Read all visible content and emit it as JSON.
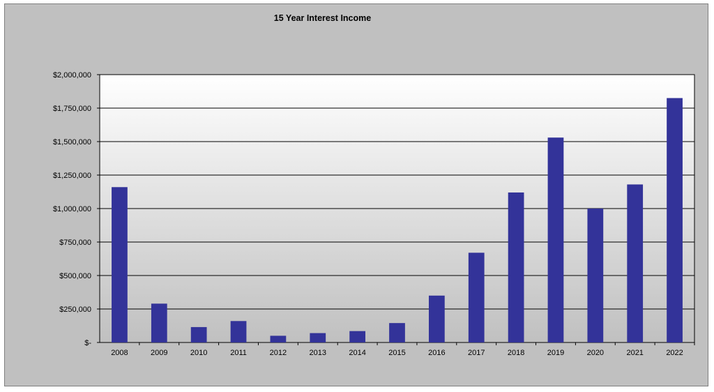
{
  "chart_data": {
    "type": "bar",
    "title": "15 Year Interest Income",
    "xlabel": "",
    "ylabel": "",
    "categories": [
      "2008",
      "2009",
      "2010",
      "2011",
      "2012",
      "2013",
      "2014",
      "2015",
      "2016",
      "2017",
      "2018",
      "2019",
      "2020",
      "2021",
      "2022"
    ],
    "values": [
      1160000,
      290000,
      115000,
      160000,
      50000,
      70000,
      85000,
      145000,
      350000,
      670000,
      1120000,
      1530000,
      1000000,
      1180000,
      1825000
    ],
    "ylim": [
      0,
      2000000
    ],
    "yticks": [
      {
        "value": 0,
        "label": "$-"
      },
      {
        "value": 250000,
        "label": "$250,000"
      },
      {
        "value": 500000,
        "label": "$500,000"
      },
      {
        "value": 750000,
        "label": "$750,000"
      },
      {
        "value": 1000000,
        "label": "$1,000,000"
      },
      {
        "value": 1250000,
        "label": "$1,250,000"
      },
      {
        "value": 1500000,
        "label": "$1,500,000"
      },
      {
        "value": 1750000,
        "label": "$1,750,000"
      },
      {
        "value": 2000000,
        "label": "$2,000,000"
      }
    ],
    "grid": true,
    "legend": "none",
    "colors": {
      "bar": "#333399",
      "frame": "#c0c0c0",
      "plot_top": "#ffffff",
      "plot_bottom": "#c0c0c0",
      "gridline": "#000000"
    }
  }
}
